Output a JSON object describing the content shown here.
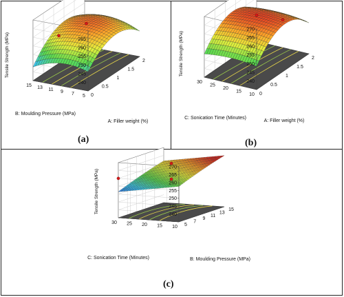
{
  "chart_data": [
    {
      "type": "surface3d",
      "panel_label": "(a)",
      "title": "",
      "x_axis": {
        "label": "A: Filler weight (%)",
        "range": [
          0,
          2
        ],
        "ticks": [
          "0",
          "0.5",
          "1",
          "1.5",
          "2"
        ]
      },
      "y_axis": {
        "label": "B: Moulding Pressure (MPa)",
        "range": [
          5,
          15
        ],
        "ticks": [
          "5",
          "7",
          "9",
          "11",
          "13",
          "15"
        ]
      },
      "z_axis": {
        "label": "Tensile Strength (MPa)",
        "range": [
          235,
          270
        ],
        "ticks": [
          "240",
          "245",
          "250",
          "255",
          "260",
          "265"
        ]
      },
      "surface_peak": {
        "x": 1.1,
        "y": 11,
        "z": 262
      },
      "design_points": [
        {
          "x": 1,
          "y": 10,
          "z": 261
        },
        {
          "x": 1,
          "y": 15,
          "z": 251
        }
      ]
    },
    {
      "type": "surface3d",
      "panel_label": "(b)",
      "title": "",
      "x_axis": {
        "label": "A: Filler weight (%)",
        "range": [
          0,
          2
        ],
        "ticks": [
          "0",
          "0.5",
          "1",
          "1.5",
          "2"
        ]
      },
      "y_axis": {
        "label": "C: Sonication Time (Minutes)",
        "range": [
          10,
          30
        ],
        "ticks": [
          "10",
          "15",
          "20",
          "25",
          "30"
        ]
      },
      "z_axis": {
        "label": "Tensile Strength (MPa)",
        "range": [
          235,
          270
        ],
        "ticks": [
          "240",
          "245",
          "250",
          "255",
          "260",
          "265",
          "270"
        ]
      },
      "surface_peak": {
        "x": 1.1,
        "y": 20,
        "z": 263
      },
      "design_points": [
        {
          "x": 1,
          "y": 20,
          "z": 264
        },
        {
          "x": 2,
          "y": 20,
          "z": 251
        }
      ]
    },
    {
      "type": "surface3d",
      "panel_label": "(c)",
      "title": "",
      "x_axis": {
        "label": "B: Moulding Pressure (MPa)",
        "range": [
          5,
          15
        ],
        "ticks": [
          "5",
          "7",
          "9",
          "11",
          "13",
          "15"
        ]
      },
      "y_axis": {
        "label": "C: Sonication Time (Minutes)",
        "range": [
          10,
          30
        ],
        "ticks": [
          "10",
          "15",
          "20",
          "25",
          "30"
        ]
      },
      "z_axis": {
        "label": "Tensile Strength (MPa)",
        "range": [
          235,
          270
        ],
        "ticks": [
          "240",
          "245",
          "250",
          "255",
          "260",
          "265",
          "270"
        ]
      },
      "surface_peak": {
        "x": 15,
        "y": 10,
        "z": 265
      },
      "design_points": [
        {
          "x": 10,
          "y": 20,
          "z": 266
        },
        {
          "x": 10,
          "y": 20,
          "z": 256
        },
        {
          "x": 5,
          "y": 30,
          "z": 260
        }
      ]
    }
  ]
}
